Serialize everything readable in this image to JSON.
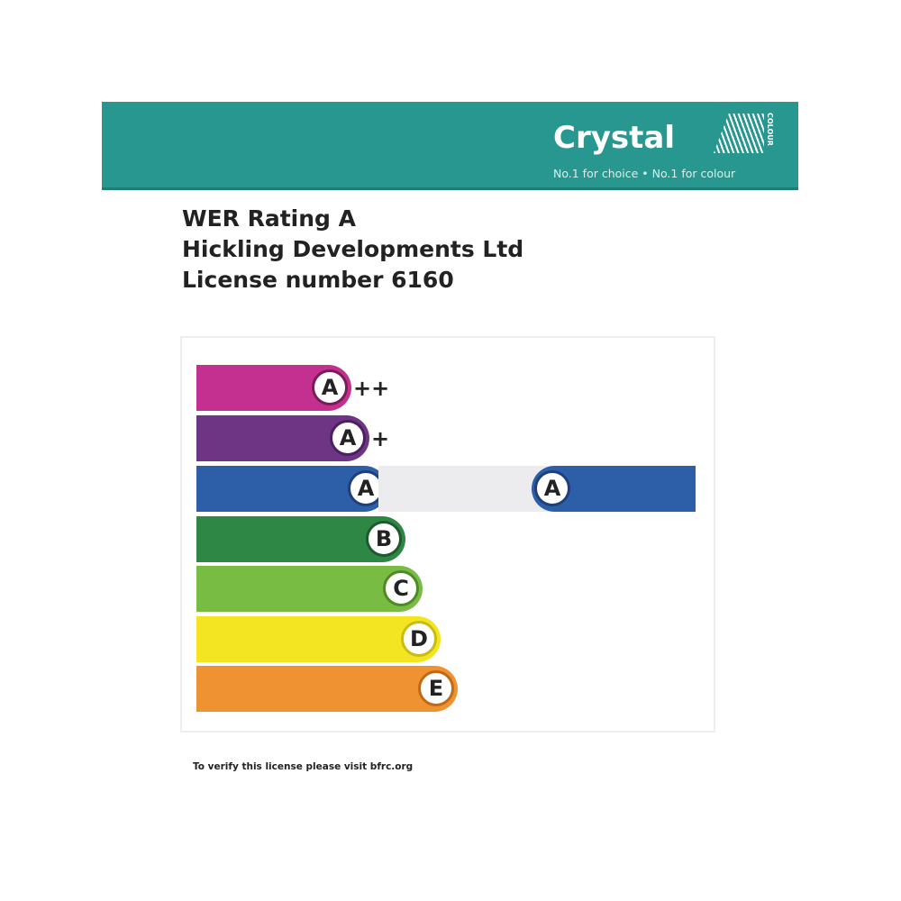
{
  "brand": {
    "name": "Crystal",
    "sub": "COLOUR",
    "tagline": "No.1 for choice  •  No.1 for colour",
    "color": "#27978f"
  },
  "heading": {
    "line1": "WER Rating A",
    "line2": "Hickling Developments Ltd",
    "line3": "License number 6160"
  },
  "scale": [
    {
      "letter": "A",
      "suffix": "++",
      "color": "#c4308f"
    },
    {
      "letter": "A",
      "suffix": "+",
      "color": "#6e3585"
    },
    {
      "letter": "A",
      "suffix": "",
      "color": "#2d5fa8"
    },
    {
      "letter": "B",
      "suffix": "",
      "color": "#2f8746"
    },
    {
      "letter": "C",
      "suffix": "",
      "color": "#79bc43"
    },
    {
      "letter": "D",
      "suffix": "",
      "color": "#f3e521"
    },
    {
      "letter": "E",
      "suffix": "",
      "color": "#ef9232"
    }
  ],
  "rating": {
    "letter": "A",
    "color": "#2d5fa8"
  },
  "footer": "To verify this license please visit bfrc.org"
}
